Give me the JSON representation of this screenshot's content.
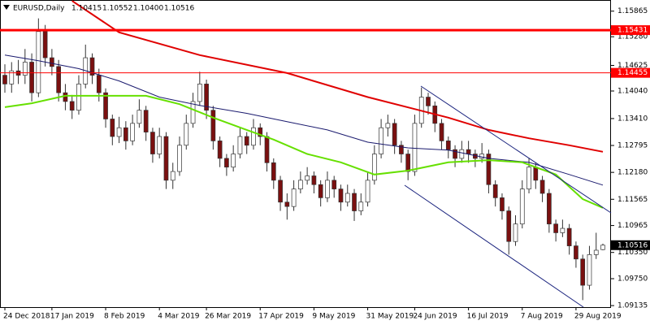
{
  "chart_data": {
    "type": "candlestick",
    "info": {
      "symbol": "EURUSD,Daily",
      "values": [
        1.10415,
        1.10552,
        1.104,
        1.10516
      ],
      "value_labels": [
        "1.10415",
        "1.10552",
        "1.10400",
        "1.10516"
      ]
    },
    "ylim": [
      1.091,
      1.1612
    ],
    "yticks": [
      1.15865,
      {
        "value": 1.1528,
        "label": "1.15280"
      },
      1.14625,
      {
        "value": 1.1404,
        "label": "1.14040"
      },
      {
        "value": 1.1341,
        "label": "1.13410"
      },
      1.12795,
      {
        "value": 1.1218,
        "label": "1.12180"
      },
      1.11565,
      1.10965,
      {
        "value": 1.1035,
        "label": "1.10350"
      },
      {
        "value": 1.0975,
        "label": "1.09750"
      },
      1.09135
    ],
    "xlim": [
      0,
      89
    ],
    "xticks": [
      {
        "value": 0,
        "label": "24 Dec 2018"
      },
      {
        "value": 7,
        "label": "17 Jan 2019"
      },
      {
        "value": 15,
        "label": "8 Feb 2019"
      },
      {
        "value": 23,
        "label": "4 Mar 2019"
      },
      {
        "value": 30,
        "label": "26 Mar 2019"
      },
      {
        "value": 38,
        "label": "17 Apr 2019"
      },
      {
        "value": 46,
        "label": "9 May 2019"
      },
      {
        "value": 54,
        "label": "31 May 2019"
      },
      {
        "value": 61,
        "label": "24 Jun 2019"
      },
      {
        "value": 69,
        "label": "16 Jul 2019"
      },
      {
        "value": 77,
        "label": "7 Aug 2019"
      },
      {
        "value": 85,
        "label": "29 Aug 2019"
      }
    ],
    "bull_color": "#ffffff",
    "bear_color": "#7a1010",
    "wick_color": "#333333",
    "ohlc": [
      [
        1.144,
        1.1465,
        1.14,
        1.142
      ],
      [
        1.142,
        1.147,
        1.14,
        1.145
      ],
      [
        1.145,
        1.1475,
        1.142,
        1.144
      ],
      [
        1.144,
        1.15,
        1.142,
        1.147
      ],
      [
        1.147,
        1.149,
        1.138,
        1.14
      ],
      [
        1.14,
        1.157,
        1.139,
        1.154
      ],
      [
        1.154,
        1.1555,
        1.146,
        1.148
      ],
      [
        1.148,
        1.15,
        1.144,
        1.146
      ],
      [
        1.146,
        1.1475,
        1.138,
        1.14
      ],
      [
        1.14,
        1.142,
        1.136,
        1.138
      ],
      [
        1.138,
        1.1395,
        1.134,
        1.136
      ],
      [
        1.136,
        1.144,
        1.135,
        1.142
      ],
      [
        1.142,
        1.151,
        1.141,
        1.148
      ],
      [
        1.148,
        1.149,
        1.142,
        1.144
      ],
      [
        1.144,
        1.1455,
        1.138,
        1.14
      ],
      [
        1.14,
        1.141,
        1.132,
        1.134
      ],
      [
        1.134,
        1.135,
        1.128,
        1.13
      ],
      [
        1.13,
        1.1345,
        1.1285,
        1.132
      ],
      [
        1.132,
        1.1335,
        1.127,
        1.129
      ],
      [
        1.129,
        1.135,
        1.128,
        1.133
      ],
      [
        1.133,
        1.1385,
        1.132,
        1.136
      ],
      [
        1.136,
        1.137,
        1.129,
        1.131
      ],
      [
        1.131,
        1.132,
        1.124,
        1.126
      ],
      [
        1.126,
        1.132,
        1.125,
        1.13
      ],
      [
        1.13,
        1.131,
        1.118,
        1.12
      ],
      [
        1.12,
        1.124,
        1.118,
        1.122
      ],
      [
        1.122,
        1.13,
        1.121,
        1.128
      ],
      [
        1.128,
        1.135,
        1.127,
        1.133
      ],
      [
        1.133,
        1.14,
        1.132,
        1.138
      ],
      [
        1.138,
        1.1448,
        1.137,
        1.142
      ],
      [
        1.142,
        1.143,
        1.134,
        1.136
      ],
      [
        1.136,
        1.137,
        1.127,
        1.129
      ],
      [
        1.129,
        1.13,
        1.123,
        1.125
      ],
      [
        1.125,
        1.126,
        1.121,
        1.123
      ],
      [
        1.123,
        1.128,
        1.122,
        1.126
      ],
      [
        1.126,
        1.132,
        1.125,
        1.13
      ],
      [
        1.13,
        1.131,
        1.126,
        1.128
      ],
      [
        1.128,
        1.134,
        1.127,
        1.132
      ],
      [
        1.132,
        1.133,
        1.128,
        1.13
      ],
      [
        1.13,
        1.131,
        1.122,
        1.124
      ],
      [
        1.124,
        1.125,
        1.118,
        1.12
      ],
      [
        1.12,
        1.121,
        1.113,
        1.115
      ],
      [
        1.115,
        1.117,
        1.111,
        1.114
      ],
      [
        1.114,
        1.12,
        1.113,
        1.118
      ],
      [
        1.118,
        1.122,
        1.117,
        1.12
      ],
      [
        1.12,
        1.123,
        1.119,
        1.121
      ],
      [
        1.121,
        1.122,
        1.117,
        1.119
      ],
      [
        1.119,
        1.12,
        1.114,
        1.116
      ],
      [
        1.116,
        1.122,
        1.115,
        1.12
      ],
      [
        1.12,
        1.121,
        1.116,
        1.118
      ],
      [
        1.118,
        1.119,
        1.113,
        1.115
      ],
      [
        1.115,
        1.119,
        1.114,
        1.117
      ],
      [
        1.117,
        1.118,
        1.1107,
        1.113
      ],
      [
        1.113,
        1.117,
        1.112,
        1.115
      ],
      [
        1.115,
        1.122,
        1.114,
        1.12
      ],
      [
        1.12,
        1.128,
        1.119,
        1.126
      ],
      [
        1.126,
        1.134,
        1.125,
        1.132
      ],
      [
        1.132,
        1.135,
        1.13,
        1.133
      ],
      [
        1.133,
        1.134,
        1.126,
        1.128
      ],
      [
        1.128,
        1.129,
        1.124,
        1.126
      ],
      [
        1.126,
        1.127,
        1.12,
        1.122
      ],
      [
        1.122,
        1.135,
        1.121,
        1.133
      ],
      [
        1.133,
        1.1412,
        1.132,
        1.139
      ],
      [
        1.139,
        1.14,
        1.135,
        1.137
      ],
      [
        1.137,
        1.138,
        1.131,
        1.133
      ],
      [
        1.133,
        1.134,
        1.127,
        1.129
      ],
      [
        1.129,
        1.13,
        1.125,
        1.127
      ],
      [
        1.127,
        1.128,
        1.123,
        1.125
      ],
      [
        1.125,
        1.129,
        1.124,
        1.127
      ],
      [
        1.127,
        1.129,
        1.124,
        1.126
      ],
      [
        1.126,
        1.127,
        1.123,
        1.125
      ],
      [
        1.125,
        1.1285,
        1.124,
        1.126
      ],
      [
        1.126,
        1.127,
        1.117,
        1.119
      ],
      [
        1.119,
        1.12,
        1.114,
        1.116
      ],
      [
        1.116,
        1.117,
        1.111,
        1.113
      ],
      [
        1.113,
        1.114,
        1.103,
        1.106
      ],
      [
        1.106,
        1.112,
        1.105,
        1.11
      ],
      [
        1.11,
        1.12,
        1.109,
        1.118
      ],
      [
        1.118,
        1.125,
        1.117,
        1.123
      ],
      [
        1.123,
        1.124,
        1.118,
        1.12
      ],
      [
        1.12,
        1.121,
        1.115,
        1.117
      ],
      [
        1.117,
        1.118,
        1.108,
        1.11
      ],
      [
        1.11,
        1.111,
        1.106,
        1.108
      ],
      [
        1.108,
        1.111,
        1.107,
        1.109
      ],
      [
        1.109,
        1.11,
        1.103,
        1.105
      ],
      [
        1.105,
        1.106,
        1.1,
        1.102
      ],
      [
        1.102,
        1.103,
        1.0926,
        1.096
      ],
      [
        1.096,
        1.105,
        1.095,
        1.103
      ],
      [
        1.103,
        1.108,
        1.102,
        1.104
      ],
      [
        1.10415,
        1.10552,
        1.104,
        1.10516
      ]
    ],
    "moving_averages": [
      {
        "color": "#e00000",
        "width": 2,
        "x": [
          10,
          17,
          29,
          42,
          54,
          66,
          72,
          78,
          84,
          89
        ],
        "values": [
          1.161,
          1.1538,
          1.1486,
          1.1445,
          1.139,
          1.1343,
          1.1315,
          1.1296,
          1.128,
          1.1265
        ]
      },
      {
        "color": "#1a1a6e",
        "width": 1,
        "x": [
          0,
          5,
          11,
          17,
          23,
          29,
          36,
          42,
          48,
          54,
          60,
          66,
          72,
          78,
          84,
          89
        ],
        "values": [
          1.1486,
          1.1473,
          1.1455,
          1.1427,
          1.139,
          1.1371,
          1.1353,
          1.1334,
          1.1315,
          1.1287,
          1.1274,
          1.1269,
          1.125,
          1.1241,
          1.1213,
          1.1189
        ]
      },
      {
        "color": "#66e000",
        "width": 2,
        "x": [
          0,
          4,
          9,
          14,
          21,
          26,
          31,
          36,
          40,
          45,
          50,
          55,
          60,
          66,
          72,
          77,
          82,
          86,
          89
        ],
        "values": [
          1.1367,
          1.1376,
          1.1393,
          1.1393,
          1.1393,
          1.1374,
          1.1343,
          1.1315,
          1.1293,
          1.126,
          1.1241,
          1.1213,
          1.1222,
          1.1241,
          1.1246,
          1.1241,
          1.1213,
          1.1157,
          1.1137
        ]
      }
    ],
    "hlines": [
      {
        "value": 1.15431,
        "label": "1.15431",
        "color": "#ff0000",
        "width": 3
      },
      {
        "value": 1.14455,
        "label": "1.14455",
        "color": "#ff0000",
        "width": 1
      }
    ],
    "current_price": {
      "value": 1.10516,
      "label": "1.10516"
    }
  }
}
